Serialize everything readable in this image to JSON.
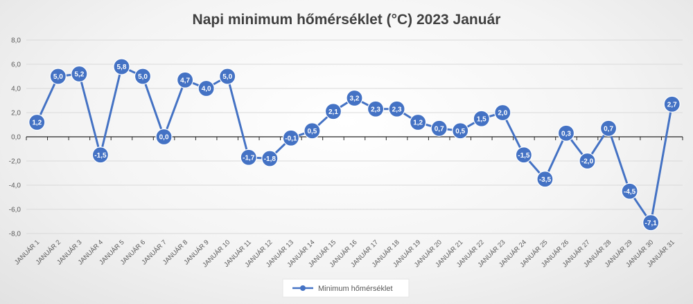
{
  "chart_data": {
    "type": "line",
    "title": "Napi minimum hőmérséklet (°C) 2023 Január",
    "categories": [
      "JANUÁR 1",
      "JANUÁR 2",
      "JANUÁR 3",
      "JANUÁR 4",
      "JANUÁR 5",
      "JANUÁR 6",
      "JANUÁR 7",
      "JANUÁR 8",
      "JANUÁR 9",
      "JANUÁR 10",
      "JANUÁR 11",
      "JANUÁR 12",
      "JANUÁR 13",
      "JANUÁR 14",
      "JANUÁR 15",
      "JANUÁR 16",
      "JANUÁR 17",
      "JANUÁR 18",
      "JANUÁR 19",
      "JANUÁR 20",
      "JANUÁR 21",
      "JANUÁR 22",
      "JANUÁR 23",
      "JANUÁR 24",
      "JANUÁR 25",
      "JANUÁR 26",
      "JANUÁR 27",
      "JANUÁR 28",
      "JANUÁR 29",
      "JANUÁR 30",
      "JANUÁR 31"
    ],
    "series": [
      {
        "name": "Minimum hőmérséklet",
        "values": [
          1.2,
          5.0,
          5.2,
          -1.5,
          5.8,
          5.0,
          0.0,
          4.7,
          4.0,
          5.0,
          -1.7,
          -1.8,
          -0.1,
          0.5,
          2.1,
          3.2,
          2.3,
          2.3,
          1.2,
          0.7,
          0.5,
          1.5,
          2.0,
          -1.5,
          -3.5,
          0.3,
          -2.0,
          0.7,
          -4.5,
          -7.1,
          2.7
        ],
        "data_labels": [
          "1,2",
          "5,0",
          "5,2",
          "-1,5",
          "5,8",
          "5,0",
          "0,0",
          "4,7",
          "4,0",
          "5,0",
          "-1,7",
          "-1,8",
          "-0,1",
          "0,5",
          "2,1",
          "3,2",
          "2,3",
          "2,3",
          "1,2",
          "0,7",
          "0,5",
          "1,5",
          "2,0",
          "-1,5",
          "-3,5",
          "0,3",
          "-2,0",
          "0,7",
          "-4,5",
          "-7,1",
          "2,7"
        ]
      }
    ],
    "ylim": [
      -8,
      8
    ],
    "yticks": [
      8,
      6,
      4,
      2,
      0,
      -2,
      -4,
      -6,
      -8
    ],
    "ytick_labels": [
      "8,0",
      "6,0",
      "4,0",
      "2,0",
      "0,0",
      "-2,0",
      "-4,0",
      "-6,0",
      "-8,0"
    ],
    "xlabel": "",
    "ylabel": "",
    "grid": true,
    "legend_position": "bottom",
    "colors": {
      "series": "#4472c4",
      "grid": "#d9d9d9",
      "zero_axis": "#262626",
      "text": "#595959",
      "title": "#404040"
    }
  }
}
